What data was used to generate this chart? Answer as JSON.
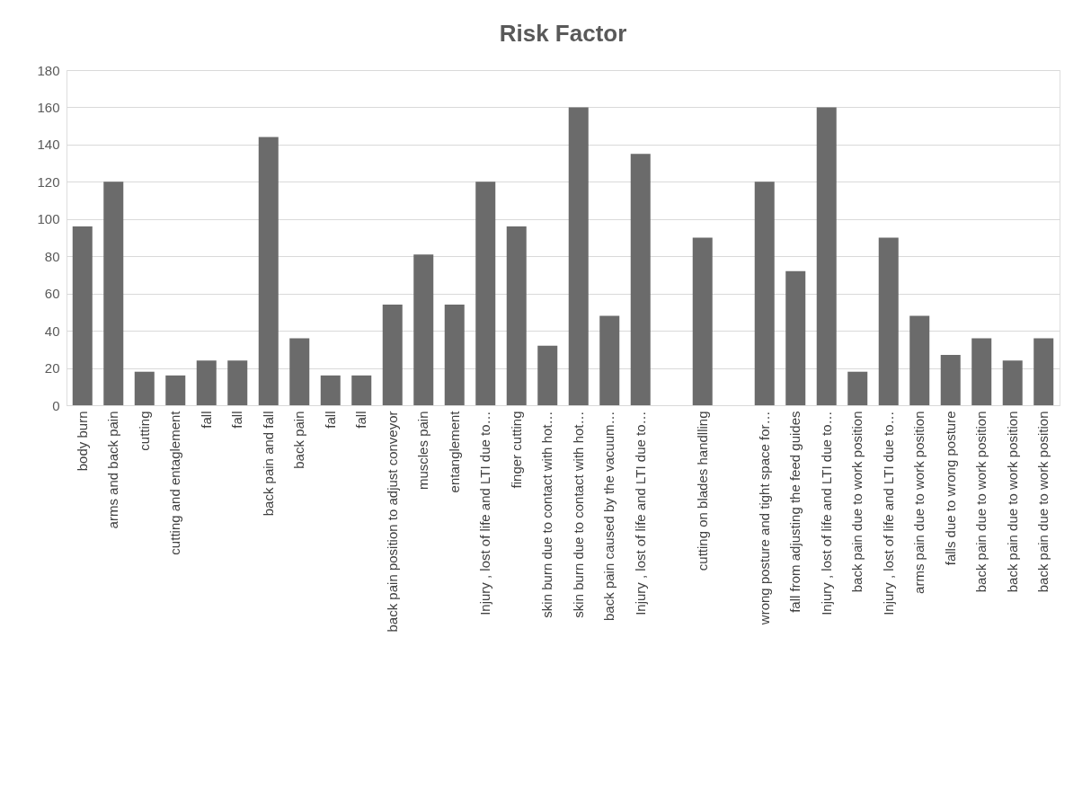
{
  "chart_data": {
    "type": "bar",
    "title": "Risk Factor",
    "categories": [
      "body burn",
      "arms and back pain",
      "cutting",
      "cutting and entaglement",
      "fall",
      "fall",
      "back pain and fall",
      "back pain",
      "fall",
      "fall",
      "back pain position to adjust conveyor",
      "muscles pain",
      "entanglement",
      "Injury , lost of life and LTI due to…",
      "finger cutting",
      "skin burn due to contact with hot…",
      "skin burn due to contact with hot…",
      "back pain caused by the vacuum…",
      "Injury , lost of life and LTI due to…",
      null,
      "cutting on blades handlling",
      null,
      "wrong posture and tight space for…",
      "fall from adjusting the feed guides",
      "Injury , lost of life and LTI due to…",
      "back pain due to work position",
      "Injury , lost of life and LTI due to…",
      "arms pain due to work position",
      "falls due to wrong posture",
      "back pain due to work position",
      "back pain due to work position",
      "back pain due to work position"
    ],
    "values": [
      96,
      120,
      18,
      16,
      24,
      24,
      144,
      36,
      16,
      16,
      54,
      81,
      54,
      120,
      96,
      32,
      160,
      48,
      135,
      null,
      90,
      null,
      120,
      72,
      160,
      18,
      90,
      48,
      27,
      36,
      24,
      36
    ],
    "color": "#6b6b6b",
    "ylim": [
      0,
      180
    ],
    "yticks": [
      0,
      20,
      40,
      60,
      80,
      100,
      120,
      140,
      160,
      180
    ],
    "grid": "y"
  }
}
